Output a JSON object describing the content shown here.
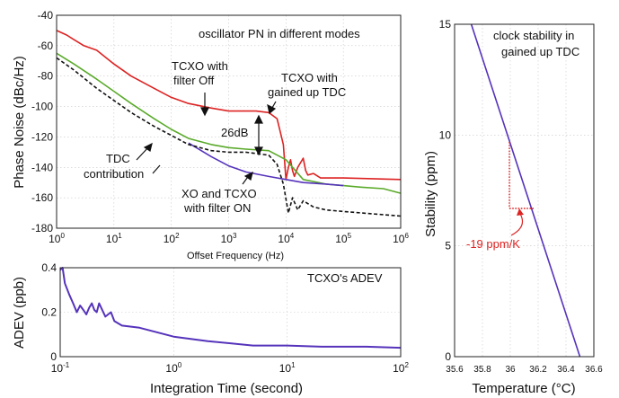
{
  "colors": {
    "red": "#dd2222",
    "green": "#5aaa2a",
    "blue": "#5533bb",
    "black": "#111111",
    "annotation_red": "#dd2222"
  },
  "chart_data": [
    {
      "type": "line",
      "title": "oscillator PN in different modes",
      "xlabel": "Offset Frequency (Hz)",
      "ylabel": "Phase Noise (dBc/Hz)",
      "xscale": "log",
      "xlim": [
        1,
        1000000
      ],
      "ylim": [
        -180,
        -40
      ],
      "x_tick_labels": [
        "10^0",
        "10^1",
        "10^2",
        "10^3",
        "10^4",
        "10^5",
        "10^6"
      ],
      "y_tick_labels": [
        "-40",
        "-60",
        "-80",
        "-100",
        "-120",
        "-140",
        "-160",
        "-180"
      ],
      "grid": true,
      "series": [
        {
          "color": "#dd2222",
          "style": "solid",
          "x": [
            1,
            1.5,
            2,
            3,
            5,
            10,
            20,
            50,
            100,
            200,
            500,
            1000,
            2000,
            3000,
            5000,
            7000,
            9000,
            10000,
            11000,
            12000,
            13000,
            14000,
            16000,
            20000,
            22000,
            24000,
            30000,
            40000,
            100000,
            1000000
          ],
          "y": [
            -50,
            -53,
            -56,
            -60,
            -63,
            -72,
            -80,
            -88,
            -94,
            -98,
            -101,
            -103,
            -103,
            -103,
            -104,
            -108,
            -125,
            -148,
            -140,
            -135,
            -142,
            -146,
            -140,
            -134,
            -142,
            -145,
            -144,
            -147,
            -147,
            -148
          ]
        },
        {
          "color": "#5aaa2a",
          "style": "solid",
          "x": [
            1,
            2,
            5,
            10,
            20,
            50,
            100,
            200,
            500,
            1000,
            2000,
            5000,
            10000,
            20000,
            50000,
            100000,
            200000,
            500000,
            1000000
          ],
          "y": [
            -65,
            -72,
            -82,
            -90,
            -98,
            -108,
            -115,
            -121,
            -125,
            -127,
            -128,
            -129,
            -135,
            -148,
            -151,
            -152,
            -153,
            -154,
            -157
          ]
        },
        {
          "color": "#5533bb",
          "style": "solid",
          "x": [
            200,
            500,
            1000,
            2000,
            5000,
            10000,
            20000,
            50000,
            100000
          ],
          "y": [
            -124,
            -133,
            -139,
            -143,
            -146,
            -148,
            -150,
            -151,
            -152
          ]
        },
        {
          "color": "#111111",
          "style": "dashed",
          "x": [
            1,
            2,
            5,
            10,
            20,
            50,
            100,
            200,
            500,
            1000,
            2000,
            5000,
            7000,
            9000,
            11000,
            13000,
            16000,
            20000,
            30000,
            50000,
            100000,
            1000000
          ],
          "y": [
            -68,
            -76,
            -88,
            -96,
            -104,
            -113,
            -119,
            -125,
            -129,
            -130,
            -130,
            -132,
            -138,
            -151,
            -170,
            -160,
            -168,
            -162,
            -166,
            -168,
            -169,
            -172
          ]
        }
      ],
      "annotations": [
        {
          "text": [
            "TCXO with",
            "filter Off"
          ]
        },
        {
          "text": [
            "TCXO with",
            "gained up TDC"
          ]
        },
        {
          "text": [
            "26dB"
          ]
        },
        {
          "text": [
            "TDC",
            "contribution"
          ]
        },
        {
          "text": [
            "XO and TCXO",
            "with filter ON"
          ]
        }
      ]
    },
    {
      "type": "line",
      "title": "TCXO's ADEV",
      "xlabel": "Integration Time (second)",
      "ylabel": "ADEV (ppb)",
      "xscale": "log",
      "xlim": [
        0.1,
        100
      ],
      "ylim": [
        0,
        0.4
      ],
      "x_tick_labels": [
        "10^-1",
        "10^0",
        "10^1",
        "10^2"
      ],
      "y_tick_labels": [
        "0.4",
        "0.2",
        "0"
      ],
      "grid": true,
      "series": [
        {
          "color": "#5533bb",
          "x": [
            0.1,
            0.105,
            0.11,
            0.12,
            0.13,
            0.14,
            0.15,
            0.16,
            0.17,
            0.18,
            0.19,
            0.2,
            0.21,
            0.22,
            0.25,
            0.28,
            0.3,
            0.35,
            0.5,
            1,
            2,
            5,
            10,
            20,
            50,
            100
          ],
          "y": [
            0.39,
            0.4,
            0.33,
            0.28,
            0.24,
            0.2,
            0.23,
            0.21,
            0.19,
            0.22,
            0.24,
            0.21,
            0.2,
            0.24,
            0.18,
            0.2,
            0.16,
            0.14,
            0.13,
            0.09,
            0.07,
            0.05,
            0.05,
            0.045,
            0.045,
            0.04
          ]
        }
      ]
    },
    {
      "type": "line",
      "title": "clock stability in gained up TDC",
      "xlabel": "Temperature (°C)",
      "ylabel": "Stability (ppm)",
      "xlim": [
        35.6,
        36.6
      ],
      "ylim": [
        0,
        15
      ],
      "x_tick_labels": [
        "35.6",
        "35.8",
        "36",
        "36.2",
        "36.4",
        "36.6"
      ],
      "y_tick_labels": [
        "15",
        "10",
        "5",
        "0"
      ],
      "grid": true,
      "series": [
        {
          "color": "#5533bb",
          "x": [
            35.72,
            36.5
          ],
          "y": [
            15,
            0
          ]
        }
      ],
      "annotations": [
        {
          "text": "-19 ppm/K"
        }
      ]
    }
  ]
}
